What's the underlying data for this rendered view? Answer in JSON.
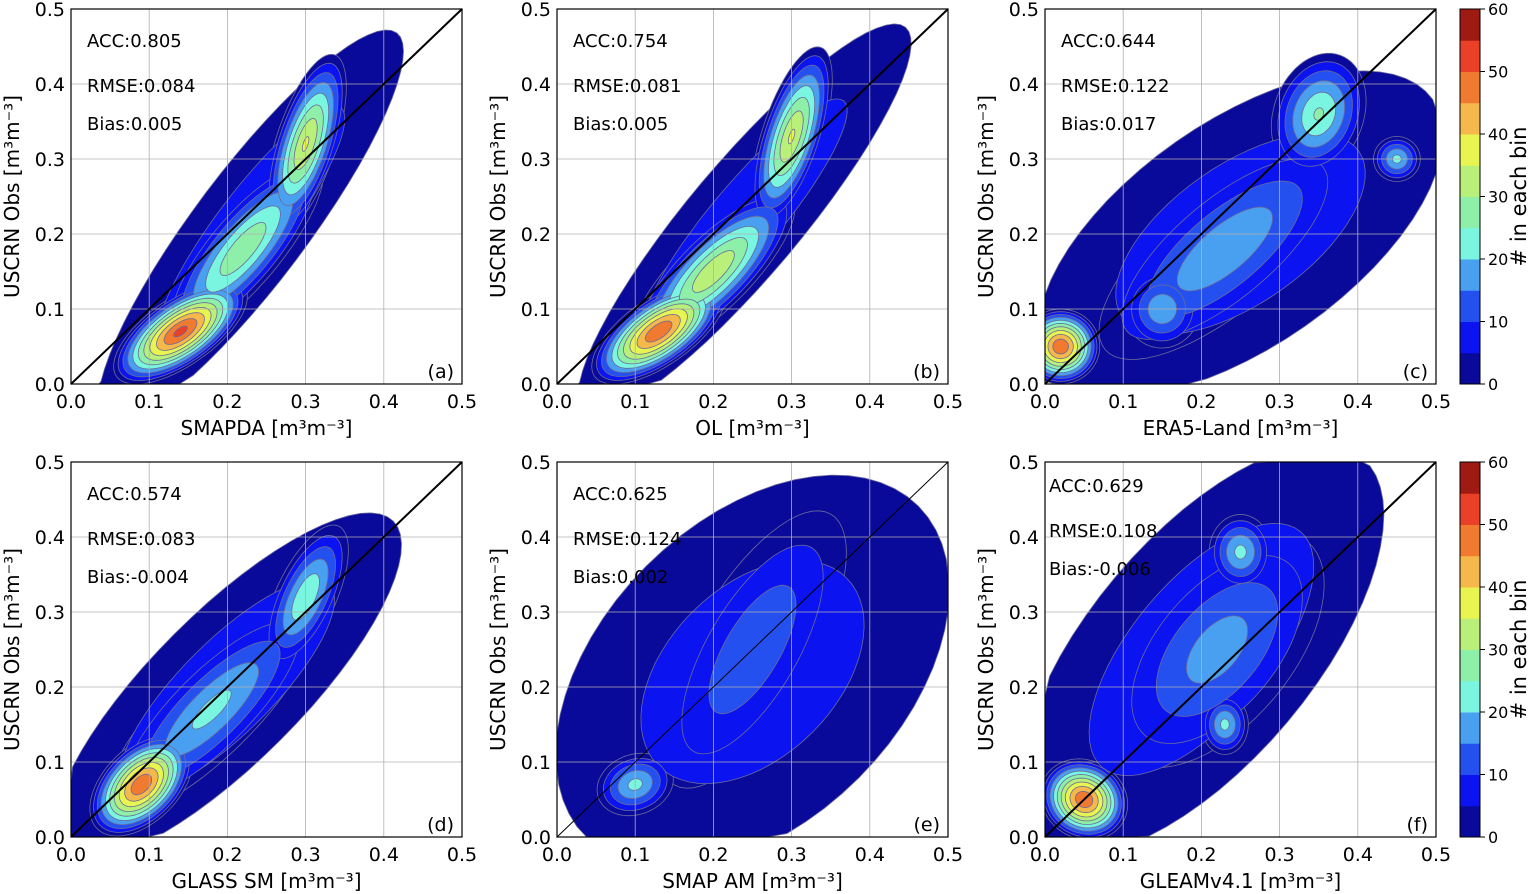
{
  "chart_data": {
    "type": "contour-density",
    "xlim": [
      0,
      0.5
    ],
    "ylim": [
      0,
      0.5
    ],
    "ticks": [
      "0.0",
      "0.1",
      "0.2",
      "0.3",
      "0.4",
      "0.5"
    ],
    "grid": true,
    "ylabel": "USCRN Obs [m³m⁻³]",
    "colorbar": {
      "label": "# in each bin",
      "levels": [
        0,
        5,
        10,
        15,
        20,
        25,
        30,
        35,
        40,
        45,
        50,
        55,
        60
      ],
      "tick_labels": [
        "0",
        "10",
        "20",
        "30",
        "40",
        "50",
        "60"
      ],
      "colors": [
        "#0a0a9a",
        "#0b14f0",
        "#2550f0",
        "#4aa0f0",
        "#7af5e0",
        "#8ef0a8",
        "#b8f07a",
        "#e8f550",
        "#f5b84a",
        "#ef7a30",
        "#ea4028",
        "#a01a14"
      ]
    },
    "panels": [
      {
        "letter": "(a)",
        "xlabel": "SMAPDA [m³m⁻³]",
        "acc": "ACC:0.805",
        "rmse": "RMSE:0.084",
        "bias": "Bias:0.005",
        "blobs": [
          [
            0.23,
            0.21,
            0.31,
            0.075,
            53,
            10
          ],
          [
            0.22,
            0.18,
            0.15,
            0.05,
            50,
            30
          ],
          [
            0.14,
            0.07,
            0.1,
            0.045,
            35,
            52
          ],
          [
            0.3,
            0.32,
            0.12,
            0.04,
            72,
            36
          ]
        ]
      },
      {
        "letter": "(b)",
        "xlabel": "OL [m³m⁻³]",
        "acc": "ACC:0.754",
        "rmse": "RMSE:0.081",
        "bias": "Bias:0.005",
        "blobs": [
          [
            0.24,
            0.22,
            0.32,
            0.075,
            50,
            10
          ],
          [
            0.2,
            0.15,
            0.14,
            0.05,
            45,
            35
          ],
          [
            0.13,
            0.07,
            0.1,
            0.045,
            35,
            50
          ],
          [
            0.3,
            0.33,
            0.12,
            0.04,
            72,
            36
          ]
        ]
      },
      {
        "letter": "(c)",
        "xlabel": "ERA5-Land [m³m⁻³]",
        "acc": "ACC:0.644",
        "rmse": "RMSE:0.122",
        "bias": "Bias:0.017",
        "blobs": [
          [
            0.25,
            0.2,
            0.3,
            0.15,
            35,
            10
          ],
          [
            0.23,
            0.18,
            0.2,
            0.08,
            40,
            20
          ],
          [
            0.35,
            0.36,
            0.08,
            0.06,
            70,
            26
          ],
          [
            0.02,
            0.05,
            0.05,
            0.05,
            0,
            50
          ],
          [
            0.45,
            0.3,
            0.03,
            0.03,
            0,
            22
          ],
          [
            0.15,
            0.1,
            0.05,
            0.05,
            80,
            20
          ]
        ]
      },
      {
        "letter": "(d)",
        "xlabel": "GLASS SM [m³m⁻³]",
        "acc": "ACC:0.574",
        "rmse": "RMSE:0.083",
        "bias": "Bias:-0.004",
        "blobs": [
          [
            0.2,
            0.2,
            0.3,
            0.1,
            45,
            10
          ],
          [
            0.18,
            0.17,
            0.18,
            0.06,
            45,
            22
          ],
          [
            0.09,
            0.07,
            0.08,
            0.05,
            45,
            50
          ],
          [
            0.3,
            0.32,
            0.1,
            0.04,
            65,
            25
          ]
        ]
      },
      {
        "letter": "(e)",
        "xlabel": "SMAP AM [m³m⁻³]",
        "acc": "ACC:0.625",
        "rmse": "RMSE:0.124",
        "bias": "Bias:0.002",
        "blobs": [
          [
            0.25,
            0.22,
            0.3,
            0.2,
            45,
            9
          ],
          [
            0.25,
            0.25,
            0.2,
            0.08,
            60,
            15
          ],
          [
            0.1,
            0.07,
            0.05,
            0.04,
            20,
            22
          ]
        ]
      },
      {
        "letter": "(f)",
        "xlabel": "GLEAMv4.1 [m³m⁻³]",
        "acc": "ACC:0.629",
        "rmse": "RMSE:0.108",
        "bias": "Bias:-0.006",
        "blobs": [
          [
            0.2,
            0.25,
            0.32,
            0.15,
            50,
            10
          ],
          [
            0.22,
            0.25,
            0.18,
            0.1,
            50,
            18
          ],
          [
            0.25,
            0.38,
            0.04,
            0.05,
            0,
            22
          ],
          [
            0.05,
            0.05,
            0.05,
            0.06,
            60,
            50
          ],
          [
            0.23,
            0.15,
            0.03,
            0.04,
            0,
            22
          ]
        ]
      }
    ]
  }
}
